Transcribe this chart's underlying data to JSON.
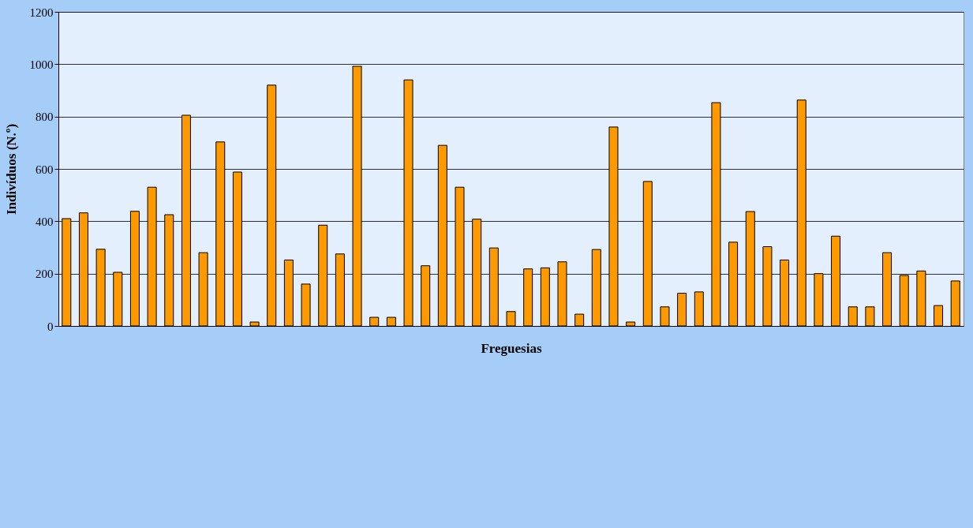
{
  "chart_data": {
    "type": "bar",
    "xlabel": "Freguesias",
    "ylabel": "Indivíduos (N.º)",
    "categories": [
      null,
      null,
      null,
      null,
      null,
      null,
      null,
      null,
      null,
      null,
      null,
      null,
      null,
      null,
      null,
      null,
      null,
      null,
      null,
      null,
      null,
      null,
      null,
      null,
      null,
      null,
      null,
      null,
      null,
      null,
      null,
      null,
      null,
      null,
      null,
      null,
      null,
      null,
      null,
      null,
      null,
      null,
      null,
      null,
      null,
      null,
      null,
      null,
      null,
      null,
      null,
      null,
      null
    ],
    "values": [
      410,
      432,
      293,
      205,
      438,
      530,
      425,
      805,
      280,
      703,
      588,
      15,
      920,
      252,
      160,
      385,
      275,
      992,
      33,
      33,
      940,
      230,
      690,
      530,
      408,
      298,
      55,
      218,
      222,
      245,
      45,
      292,
      760,
      15,
      552,
      73,
      125,
      130,
      853,
      320,
      437,
      303,
      252,
      863,
      200,
      343,
      73,
      73,
      280,
      193,
      210,
      78,
      172
    ],
    "color": "#ff9900",
    "ylim": [
      0,
      1200
    ],
    "yticks": [
      0,
      200,
      400,
      600,
      800,
      1000,
      1200
    ],
    "grid": "y",
    "tick_labels": "y"
  }
}
